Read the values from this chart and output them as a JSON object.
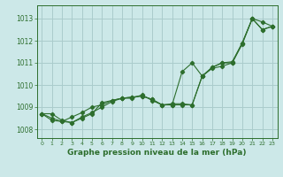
{
  "title": "Graphe pression niveau de la mer (hPa)",
  "bg_color": "#cce8e8",
  "grid_color": "#aacccc",
  "line_color": "#2d6e2d",
  "xlim": [
    -0.5,
    23.5
  ],
  "ylim": [
    1007.6,
    1013.6
  ],
  "yticks": [
    1008,
    1009,
    1010,
    1011,
    1012,
    1013
  ],
  "xticks": [
    0,
    1,
    2,
    3,
    4,
    5,
    6,
    7,
    8,
    9,
    10,
    11,
    12,
    13,
    14,
    15,
    16,
    17,
    18,
    19,
    20,
    21,
    22,
    23
  ],
  "series": [
    [
      1008.7,
      1008.7,
      1008.4,
      1008.3,
      1008.5,
      1008.7,
      1009.2,
      1009.3,
      1009.4,
      1009.4,
      1009.55,
      1009.3,
      1009.1,
      1009.1,
      1010.6,
      1011.0,
      1010.4,
      1010.8,
      1011.0,
      1011.05,
      1011.9,
      1013.0,
      1012.85,
      1012.65
    ],
    [
      1008.7,
      1008.4,
      1008.35,
      1008.3,
      1008.55,
      1008.75,
      1009.0,
      1009.25,
      1009.4,
      1009.45,
      1009.5,
      1009.35,
      1009.1,
      1009.1,
      1009.1,
      1009.1,
      1010.4,
      1010.75,
      1010.85,
      1011.0,
      1011.85,
      1013.0,
      1012.5,
      1012.65
    ],
    [
      1008.7,
      1008.5,
      1008.35,
      1008.55,
      1008.75,
      1009.0,
      1009.1,
      1009.3,
      1009.4,
      1009.45,
      1009.5,
      1009.35,
      1009.1,
      1009.15,
      1009.15,
      1009.1,
      1010.4,
      1010.8,
      1011.0,
      1011.0,
      1011.9,
      1013.0,
      1012.5,
      1012.65
    ]
  ]
}
